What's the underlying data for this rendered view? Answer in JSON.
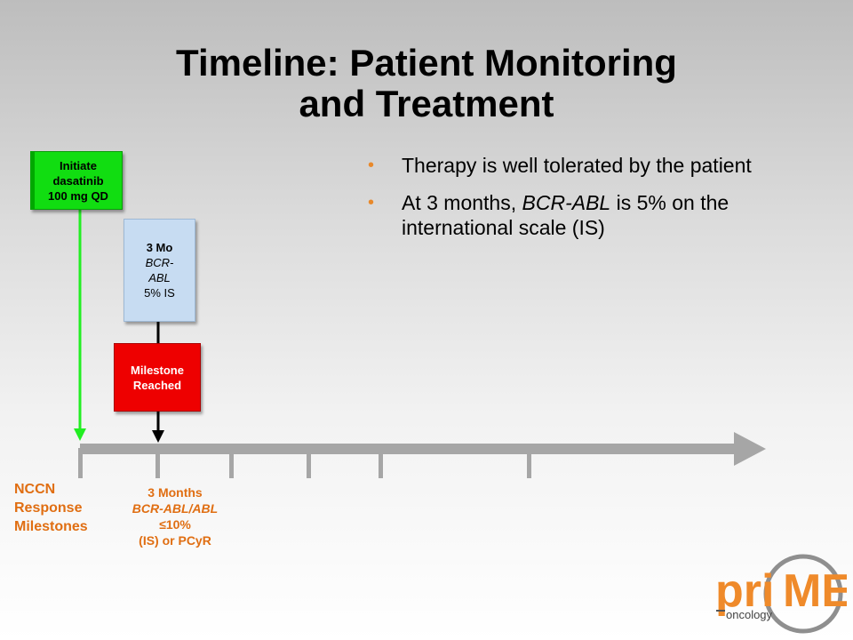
{
  "title": {
    "line1": "Timeline: Patient Monitoring",
    "line2": "and Treatment"
  },
  "bullets": [
    "Therapy is well tolerated by the patient",
    "At 3 months,"
  ],
  "bullet2": {
    "prefix": "At 3 months, ",
    "italic": "BCR-ABL",
    "suffix": " is 5% on the international scale (IS)"
  },
  "initiate_box": {
    "line1": "Initiate",
    "line2": "dasatinib",
    "line3": "100 mg QD"
  },
  "month3_box": {
    "line1": "3 Mo",
    "line2": "BCR-",
    "line3": "ABL",
    "line4": "5% IS"
  },
  "milestone_box": {
    "line1": "Milestone",
    "line2": "Reached"
  },
  "nccn_label": {
    "line1": "NCCN",
    "line2": "Response",
    "line3": "Milestones"
  },
  "month3_milestone": {
    "line1": "3 Months",
    "line2_italic": "BCR-ABL/ABL",
    "line2_rest": " ≤10%",
    "line3": "(IS) or PCyR"
  },
  "logo": {
    "text_pri": "pri",
    "text_me": "ME",
    "text_oncology": "oncology"
  },
  "colors": {
    "accent_orange": "#e06e12",
    "green": "#11dd11",
    "red": "#ee0000",
    "blue": "#c7dcf2",
    "timeline_gray": "#a6a6a6"
  }
}
